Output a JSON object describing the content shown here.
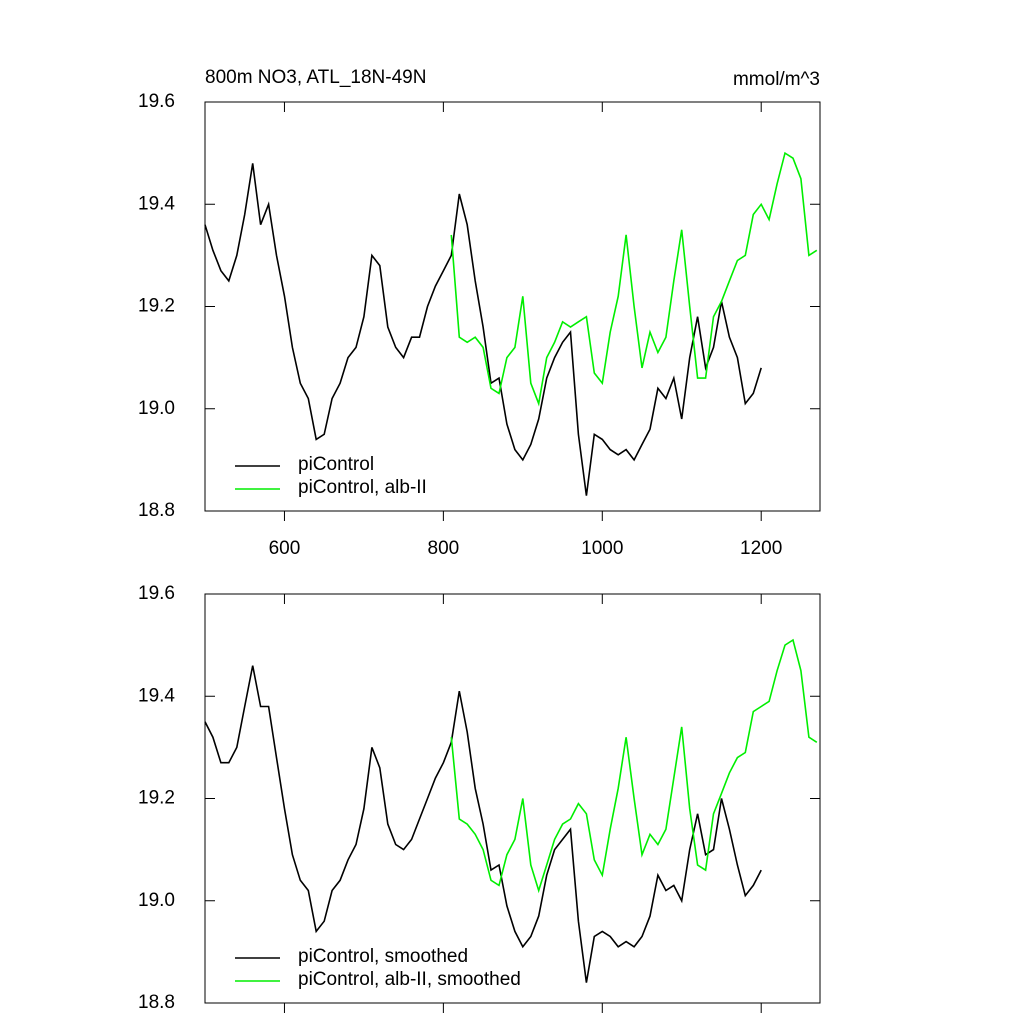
{
  "chart_data": [
    {
      "type": "line",
      "title": "800m NO3, ATL_18N-49N",
      "units_label": "mmol/m^3",
      "xlim": [
        500,
        1274
      ],
      "xticks": [
        600,
        800,
        1000,
        1200
      ],
      "xticklabels": true,
      "ylim": [
        18.8,
        19.6
      ],
      "yticks": [
        18.8,
        {
          "value": 19,
          "label": "19.0"
        },
        19.2,
        19.4,
        19.6
      ],
      "legend": "lower left",
      "series": [
        {
          "name": "piControl",
          "color": "#000000",
          "x": [
            500,
            510,
            520,
            530,
            540,
            550,
            560,
            570,
            580,
            590,
            600,
            610,
            620,
            630,
            640,
            650,
            660,
            670,
            680,
            690,
            700,
            710,
            720,
            730,
            740,
            750,
            760,
            770,
            780,
            790,
            800,
            810,
            820,
            830,
            840,
            850,
            860,
            870,
            880,
            890,
            900,
            910,
            920,
            930,
            940,
            950,
            960,
            970,
            980,
            990,
            1000,
            1010,
            1020,
            1030,
            1040,
            1050,
            1060,
            1070,
            1080,
            1090,
            1100,
            1110,
            1120,
            1130,
            1140,
            1150,
            1160,
            1170,
            1180,
            1190,
            1200
          ],
          "values": [
            19.36,
            19.31,
            19.27,
            19.25,
            19.3,
            19.38,
            19.48,
            19.36,
            19.4,
            19.3,
            19.22,
            19.12,
            19.05,
            19.02,
            18.94,
            18.95,
            19.02,
            19.05,
            19.1,
            19.12,
            19.18,
            19.3,
            19.28,
            19.16,
            19.12,
            19.1,
            19.14,
            19.14,
            19.2,
            19.24,
            19.27,
            19.3,
            19.42,
            19.36,
            19.25,
            19.16,
            19.05,
            19.06,
            18.97,
            18.92,
            18.9,
            18.93,
            18.98,
            19.06,
            19.1,
            19.13,
            19.15,
            18.95,
            18.83,
            18.95,
            18.94,
            18.92,
            18.91,
            18.92,
            18.9,
            18.93,
            18.96,
            19.04,
            19.02,
            19.06,
            18.98,
            19.1,
            19.18,
            19.08,
            19.12,
            19.21,
            19.14,
            19.1,
            19.01,
            19.03,
            19.08
          ]
        },
        {
          "name": "piControl, alb-II",
          "color": "#00ee00",
          "x": [
            810,
            820,
            830,
            840,
            850,
            860,
            870,
            880,
            890,
            900,
            910,
            920,
            930,
            940,
            950,
            960,
            970,
            980,
            990,
            1000,
            1010,
            1020,
            1030,
            1040,
            1050,
            1060,
            1070,
            1080,
            1090,
            1100,
            1110,
            1120,
            1130,
            1140,
            1150,
            1160,
            1170,
            1180,
            1190,
            1200,
            1210,
            1220,
            1230,
            1240,
            1250,
            1260,
            1270
          ],
          "values": [
            19.34,
            19.14,
            19.13,
            19.14,
            19.12,
            19.04,
            19.03,
            19.1,
            19.12,
            19.22,
            19.05,
            19.01,
            19.1,
            19.13,
            19.17,
            19.16,
            19.17,
            19.18,
            19.07,
            19.05,
            19.15,
            19.22,
            19.34,
            19.2,
            19.08,
            19.15,
            19.11,
            19.14,
            19.25,
            19.35,
            19.2,
            19.06,
            19.06,
            19.18,
            19.21,
            19.25,
            19.29,
            19.3,
            19.38,
            19.4,
            19.37,
            19.44,
            19.5,
            19.49,
            19.45,
            19.3,
            19.31
          ]
        }
      ]
    },
    {
      "type": "line",
      "xlim": [
        500,
        1274
      ],
      "xticks": [
        600,
        800,
        1000,
        1200
      ],
      "xticklabels": false,
      "ylim": [
        18.8,
        19.6
      ],
      "yticks": [
        18.8,
        {
          "value": 19,
          "label": "19.0"
        },
        19.2,
        19.4,
        19.6
      ],
      "legend": "lower left",
      "series": [
        {
          "name": "piControl, smoothed",
          "color": "#000000",
          "x": [
            500,
            510,
            520,
            530,
            540,
            550,
            560,
            570,
            580,
            590,
            600,
            610,
            620,
            630,
            640,
            650,
            660,
            670,
            680,
            690,
            700,
            710,
            720,
            730,
            740,
            750,
            760,
            770,
            780,
            790,
            800,
            810,
            820,
            830,
            840,
            850,
            860,
            870,
            880,
            890,
            900,
            910,
            920,
            930,
            940,
            950,
            960,
            970,
            980,
            990,
            1000,
            1010,
            1020,
            1030,
            1040,
            1050,
            1060,
            1070,
            1080,
            1090,
            1100,
            1110,
            1120,
            1130,
            1140,
            1150,
            1160,
            1170,
            1180,
            1190,
            1200
          ],
          "values": [
            19.35,
            19.32,
            19.27,
            19.27,
            19.3,
            19.38,
            19.46,
            19.38,
            19.38,
            19.28,
            19.18,
            19.09,
            19.04,
            19.02,
            18.94,
            18.96,
            19.02,
            19.04,
            19.08,
            19.11,
            19.18,
            19.3,
            19.26,
            19.15,
            19.11,
            19.1,
            19.12,
            19.16,
            19.2,
            19.24,
            19.27,
            19.31,
            19.41,
            19.33,
            19.22,
            19.15,
            19.06,
            19.07,
            18.99,
            18.94,
            18.91,
            18.93,
            18.97,
            19.05,
            19.1,
            19.12,
            19.14,
            18.96,
            18.84,
            18.93,
            18.94,
            18.93,
            18.91,
            18.92,
            18.91,
            18.93,
            18.97,
            19.05,
            19.02,
            19.03,
            19.0,
            19.1,
            19.17,
            19.09,
            19.1,
            19.2,
            19.14,
            19.07,
            19.01,
            19.03,
            19.06
          ]
        },
        {
          "name": "piControl, alb-II, smoothed",
          "color": "#00ee00",
          "x": [
            810,
            820,
            830,
            840,
            850,
            860,
            870,
            880,
            890,
            900,
            910,
            920,
            930,
            940,
            950,
            960,
            970,
            980,
            990,
            1000,
            1010,
            1020,
            1030,
            1040,
            1050,
            1060,
            1070,
            1080,
            1090,
            1100,
            1110,
            1120,
            1130,
            1140,
            1150,
            1160,
            1170,
            1180,
            1190,
            1200,
            1210,
            1220,
            1230,
            1240,
            1250,
            1260,
            1270
          ],
          "values": [
            19.32,
            19.16,
            19.15,
            19.13,
            19.1,
            19.04,
            19.03,
            19.09,
            19.12,
            19.2,
            19.07,
            19.02,
            19.07,
            19.12,
            19.15,
            19.16,
            19.19,
            19.17,
            19.08,
            19.05,
            19.14,
            19.22,
            19.32,
            19.2,
            19.09,
            19.13,
            19.11,
            19.14,
            19.24,
            19.34,
            19.18,
            19.07,
            19.06,
            19.17,
            19.21,
            19.25,
            19.28,
            19.29,
            19.37,
            19.38,
            19.39,
            19.45,
            19.5,
            19.51,
            19.45,
            19.32,
            19.31
          ]
        }
      ]
    }
  ]
}
